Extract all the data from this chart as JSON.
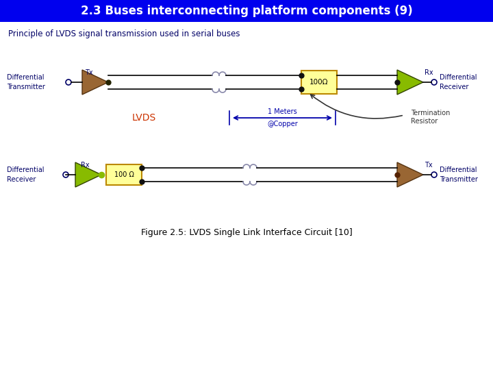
{
  "title": "2.3 Buses interconnecting platform components (9)",
  "title_bg": "#0000ee",
  "title_color": "#ffffff",
  "subtitle": "Principle of LVDS signal transmission used in serial buses",
  "subtitle_color": "#000066",
  "figure_caption": "Figure 2.5: LVDS Single Link Interface Circuit [10]",
  "bg_color": "#ffffff",
  "tri_green": "#88bb00",
  "tri_brown": "#996633",
  "res_fill": "#ffff99",
  "res_border": "#bb8800",
  "wire_color": "#000000",
  "lvds_color": "#cc3300",
  "label_color": "#000066",
  "arrow_color": "#0000aa",
  "squiggle_color": "#8888aa"
}
